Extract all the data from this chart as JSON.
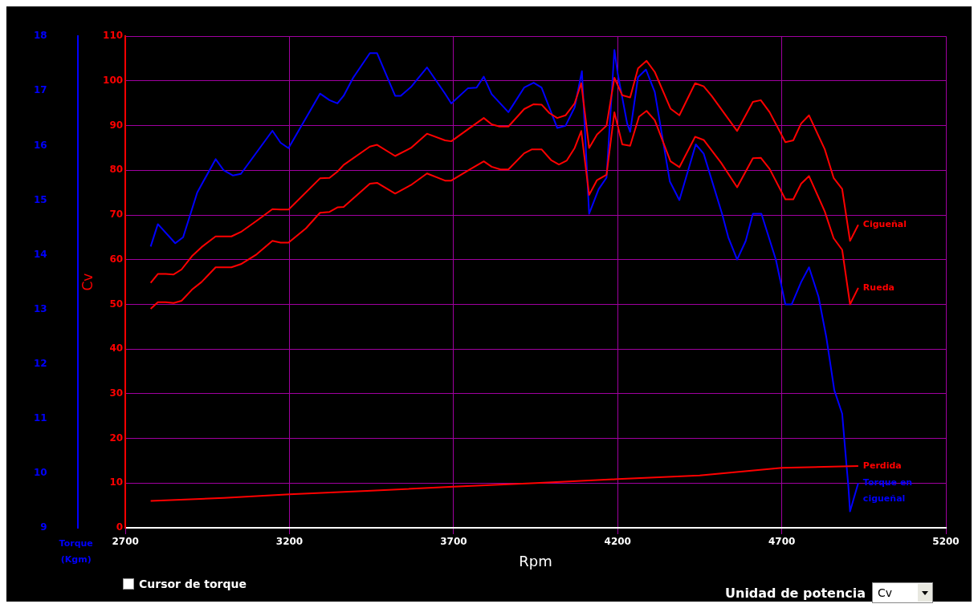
{
  "chart_data": {
    "type": "line",
    "xlabel": "Rpm",
    "ylabel": "Cv",
    "y2label": "Torque (Kgm)",
    "xlim": [
      2700,
      5200
    ],
    "xticks": [
      2700,
      3200,
      3700,
      4200,
      4700,
      5200
    ],
    "ylim": [
      0,
      110
    ],
    "yticks": [
      0,
      10,
      20,
      30,
      40,
      50,
      60,
      70,
      80,
      90,
      100,
      110
    ],
    "y2lim": [
      9,
      18
    ],
    "y2ticks": [
      9,
      10,
      11,
      12,
      13,
      14,
      15,
      16,
      17,
      18
    ],
    "grid": true,
    "legend": false,
    "annotations": [
      "Cursor de torque",
      "Unidad de potencia",
      "Cv"
    ],
    "series": [
      {
        "name": "Cigueñal",
        "color": "#ff0000",
        "x": [
          2777,
          2799,
          2823,
          2847,
          2871,
          2903,
          2932,
          2975,
          2999,
          3023,
          3052,
          3100,
          3148,
          3173,
          3197,
          3293,
          3322,
          3346,
          3365,
          3445,
          3467,
          3522,
          3570,
          3619,
          3674,
          3693,
          3750,
          3792,
          3816,
          3840,
          3867,
          3915,
          3944,
          3968,
          3992,
          4016,
          4041,
          4069,
          4089,
          4113,
          4137,
          4166,
          4190,
          4214,
          4238,
          4262,
          4288,
          4313,
          4361,
          4388,
          4436,
          4462,
          4486,
          4564,
          4612,
          4636,
          4663,
          4711,
          4735,
          4759,
          4783,
          4831,
          4858,
          4884,
          4908,
          4933
        ],
        "values": [
          54.8,
          56.8,
          56.8,
          56.7,
          57.8,
          60.8,
          62.8,
          65.2,
          65.2,
          65.2,
          66.2,
          68.7,
          71.3,
          71.2,
          71.2,
          78.2,
          78.3,
          79.7,
          81.2,
          85.3,
          85.7,
          83.2,
          85.0,
          88.2,
          86.7,
          86.5,
          89.5,
          91.7,
          90.3,
          89.8,
          89.8,
          93.7,
          94.8,
          94.7,
          92.8,
          91.7,
          92.3,
          95.0,
          99.5,
          85.0,
          88.0,
          90.0,
          100.7,
          96.8,
          96.3,
          102.8,
          104.5,
          102.0,
          93.8,
          92.3,
          99.5,
          98.8,
          96.7,
          88.8,
          95.3,
          95.7,
          93.0,
          86.3,
          86.7,
          90.5,
          92.3,
          84.7,
          78.3,
          75.8,
          64.2,
          67.8
        ]
      },
      {
        "name": "Rueda",
        "color": "#ff0000",
        "x": [
          2777,
          2799,
          2823,
          2847,
          2871,
          2903,
          2932,
          2975,
          2999,
          3023,
          3052,
          3100,
          3148,
          3173,
          3197,
          3250,
          3293,
          3322,
          3346,
          3365,
          3445,
          3467,
          3522,
          3570,
          3619,
          3674,
          3693,
          3750,
          3792,
          3816,
          3843,
          3867,
          3915,
          3939,
          3968,
          3997,
          4021,
          4045,
          4069,
          4089,
          4113,
          4137,
          4166,
          4190,
          4214,
          4238,
          4265,
          4288,
          4313,
          4361,
          4388,
          4436,
          4462,
          4515,
          4564,
          4612,
          4636,
          4663,
          4711,
          4735,
          4759,
          4783,
          4831,
          4858,
          4884,
          4908,
          4933
        ],
        "values": [
          49.0,
          50.5,
          50.5,
          50.3,
          50.8,
          53.3,
          55.0,
          58.3,
          58.3,
          58.3,
          59.0,
          61.2,
          64.2,
          63.8,
          63.8,
          67.0,
          70.5,
          70.7,
          71.7,
          71.8,
          77.0,
          77.2,
          74.8,
          76.7,
          79.3,
          77.7,
          77.7,
          80.2,
          82.0,
          80.8,
          80.2,
          80.2,
          83.8,
          84.7,
          84.7,
          82.3,
          81.3,
          82.2,
          85.0,
          88.8,
          74.5,
          77.8,
          79.0,
          93.0,
          85.8,
          85.5,
          92.0,
          93.3,
          91.2,
          82.0,
          80.7,
          87.5,
          86.8,
          81.7,
          76.2,
          82.7,
          82.8,
          80.3,
          73.5,
          73.5,
          77.0,
          78.7,
          70.8,
          64.8,
          62.2,
          50.0,
          53.7
        ]
      },
      {
        "name": "Perdida",
        "color": "#ff0000",
        "x": [
          2777,
          3000,
          3200,
          3450,
          3700,
          3950,
          4200,
          4450,
          4700,
          4933
        ],
        "values": [
          6.0,
          6.7,
          7.5,
          8.3,
          9.2,
          10.0,
          10.9,
          11.7,
          13.4,
          13.8
        ]
      },
      {
        "name": "Torque en cigueñal",
        "color": "#0000ff",
        "axis": "y2",
        "x": [
          2777,
          2799,
          2852,
          2876,
          2919,
          2975,
          2999,
          3028,
          3052,
          3148,
          3173,
          3197,
          3250,
          3293,
          3322,
          3346,
          3365,
          3394,
          3445,
          3467,
          3522,
          3539,
          3570,
          3619,
          3674,
          3693,
          3744,
          3770,
          3792,
          3816,
          3867,
          3915,
          3944,
          3968,
          4016,
          4041,
          4069,
          4091,
          4113,
          4142,
          4166,
          4190,
          4200,
          4229,
          4238,
          4262,
          4286,
          4313,
          4359,
          4388,
          4438,
          4462,
          4518,
          4537,
          4564,
          4590,
          4612,
          4638,
          4682,
          4711,
          4730,
          4759,
          4783,
          4812,
          4836,
          4860,
          4884,
          4896,
          4903,
          4908,
          4933
        ],
        "values": [
          14.15,
          14.56,
          14.21,
          14.32,
          15.14,
          15.75,
          15.55,
          15.45,
          15.48,
          16.27,
          16.05,
          15.95,
          16.5,
          16.95,
          16.83,
          16.77,
          16.91,
          17.24,
          17.69,
          17.69,
          16.91,
          16.91,
          17.07,
          17.43,
          16.95,
          16.77,
          17.05,
          17.06,
          17.26,
          16.94,
          16.61,
          17.06,
          17.15,
          17.06,
          16.32,
          16.36,
          16.7,
          17.36,
          14.75,
          15.2,
          15.41,
          17.75,
          17.32,
          16.4,
          16.25,
          17.25,
          17.39,
          16.98,
          15.34,
          15.0,
          16.02,
          15.85,
          14.75,
          14.32,
          13.91,
          14.25,
          14.75,
          14.75,
          13.91,
          13.09,
          13.09,
          13.5,
          13.77,
          13.23,
          12.48,
          11.52,
          11.09,
          10.23,
          9.75,
          9.3,
          9.82
        ]
      }
    ]
  }
}
